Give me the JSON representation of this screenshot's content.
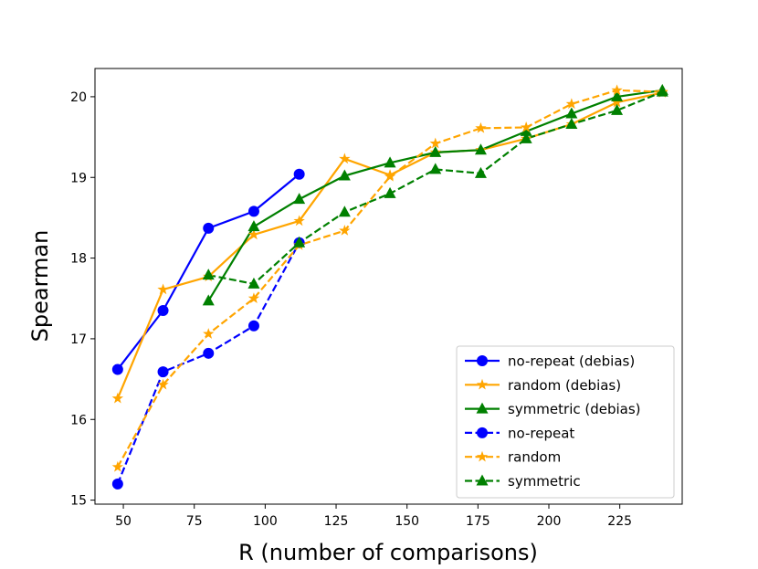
{
  "chart_data": {
    "type": "line",
    "title": "",
    "xlabel": "R (number of comparisons)",
    "ylabel": "Spearman",
    "xlim": [
      40,
      247
    ],
    "ylim": [
      14.95,
      20.35
    ],
    "xticks": [
      50,
      75,
      100,
      125,
      150,
      175,
      200,
      225
    ],
    "yticks": [
      15,
      16,
      17,
      18,
      19,
      20
    ],
    "xtick_labels": [
      "50",
      "75",
      "100",
      "125",
      "150",
      "175",
      "200",
      "225"
    ],
    "ytick_labels": [
      "15",
      "16",
      "17",
      "18",
      "19",
      "20"
    ],
    "grid": false,
    "legend_position": "lower-right",
    "series": [
      {
        "name": "no-repeat (debias)",
        "color": "#0000ff",
        "linestyle": "solid",
        "marker": "circle",
        "x": [
          48,
          64,
          80,
          96,
          112
        ],
        "values": [
          16.62,
          17.35,
          18.37,
          18.58,
          19.04
        ]
      },
      {
        "name": "random (debias)",
        "color": "#ffa500",
        "linestyle": "solid",
        "marker": "star",
        "x": [
          48,
          64,
          80,
          96,
          112,
          128,
          144,
          160,
          176,
          192,
          208,
          224,
          240
        ],
        "values": [
          16.26,
          17.61,
          17.77,
          18.29,
          18.46,
          19.23,
          19.03,
          19.31,
          19.34,
          19.48,
          19.66,
          19.93,
          20.05
        ]
      },
      {
        "name": "symmetric (debias)",
        "color": "#008000",
        "linestyle": "solid",
        "marker": "triangle",
        "x": [
          80,
          96,
          112,
          128,
          144,
          160,
          176,
          192,
          208,
          224,
          240
        ],
        "values": [
          17.47,
          18.39,
          18.73,
          19.02,
          19.18,
          19.31,
          19.34,
          19.57,
          19.79,
          20.0,
          20.08
        ]
      },
      {
        "name": "no-repeat",
        "color": "#0000ff",
        "linestyle": "dashed",
        "marker": "circle",
        "x": [
          48,
          64,
          80,
          96,
          112
        ],
        "values": [
          15.2,
          16.59,
          16.82,
          17.16,
          18.19
        ]
      },
      {
        "name": "random",
        "color": "#ffa500",
        "linestyle": "dashed",
        "marker": "star",
        "x": [
          48,
          64,
          80,
          96,
          112,
          128,
          144,
          160,
          176,
          192,
          208,
          224,
          240
        ],
        "values": [
          15.41,
          16.43,
          17.06,
          17.5,
          18.16,
          18.34,
          19.01,
          19.42,
          19.61,
          19.62,
          19.91,
          20.08,
          20.06
        ]
      },
      {
        "name": "symmetric",
        "color": "#008000",
        "linestyle": "dashed",
        "marker": "triangle",
        "x": [
          80,
          96,
          112,
          128,
          144,
          160,
          176,
          192,
          208,
          224,
          240
        ],
        "values": [
          17.79,
          17.68,
          18.19,
          18.57,
          18.8,
          19.1,
          19.05,
          19.48,
          19.66,
          19.83,
          20.06
        ]
      }
    ]
  }
}
